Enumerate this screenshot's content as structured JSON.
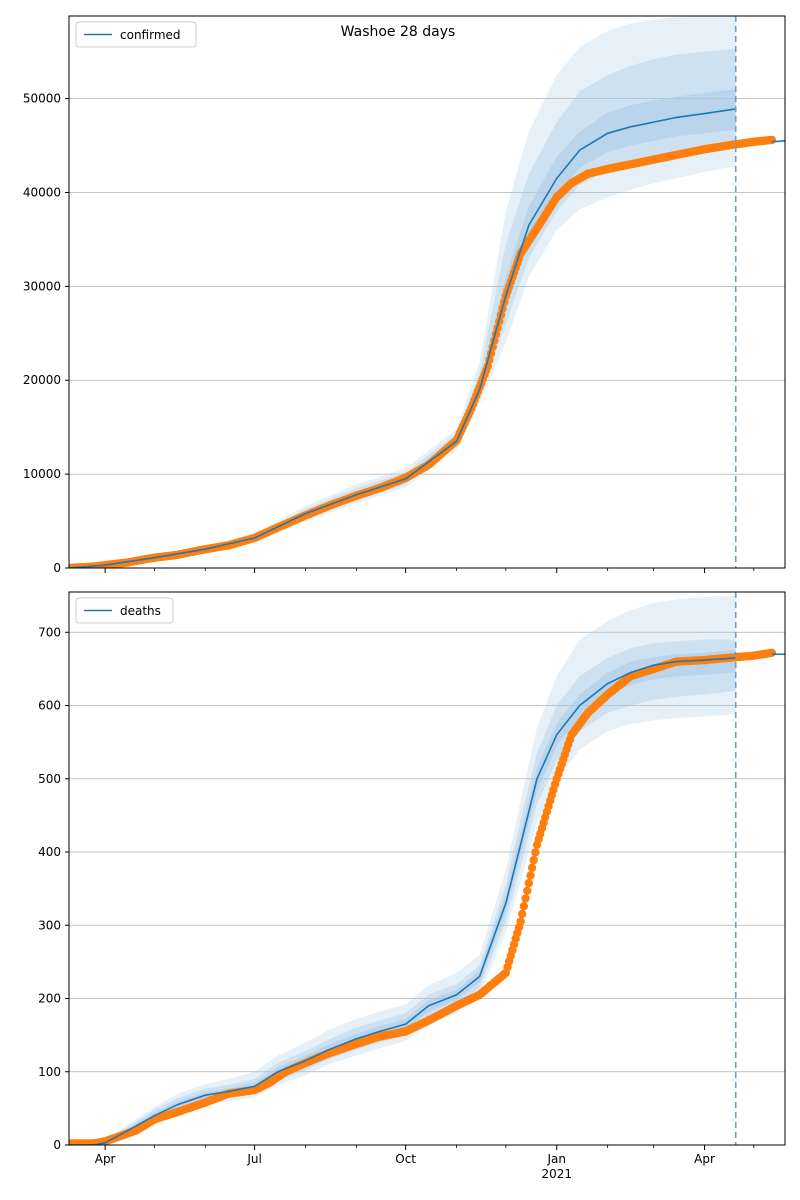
{
  "figure": {
    "title": "Washoe 28 days"
  },
  "colors": {
    "model_line": "#1f77b4",
    "observed_points": "#ff7f0e",
    "band": "#a6c8e6",
    "grid": "#b0b0b0",
    "forecast_start_line": "#6a9fca"
  },
  "x_axis": {
    "type": "date",
    "range": [
      "2020-03-10",
      "2021-05-20"
    ],
    "major_ticks": [
      {
        "date": "2020-04-01",
        "label": "Apr",
        "sublabel": ""
      },
      {
        "date": "2020-07-01",
        "label": "Jul",
        "sublabel": ""
      },
      {
        "date": "2020-10-01",
        "label": "Oct",
        "sublabel": ""
      },
      {
        "date": "2021-01-01",
        "label": "Jan",
        "sublabel": "2021"
      },
      {
        "date": "2021-04-01",
        "label": "Apr",
        "sublabel": ""
      }
    ],
    "minor_ticks": [
      "2020-05-01",
      "2020-06-01",
      "2020-08-01",
      "2020-09-01",
      "2020-11-01",
      "2020-12-01",
      "2021-02-01",
      "2021-03-01",
      "2021-05-01"
    ],
    "forecast_start": "2021-04-20"
  },
  "chart_data": [
    {
      "type": "line",
      "legend": {
        "label": "confirmed",
        "position": "upper-left"
      },
      "ylim": [
        0,
        58800
      ],
      "yticks": [
        0,
        10000,
        20000,
        30000,
        40000,
        50000
      ],
      "grid": "y",
      "model": {
        "x": [
          "2020-03-10",
          "2020-04-01",
          "2020-05-01",
          "2020-06-01",
          "2020-07-01",
          "2020-08-01",
          "2020-09-01",
          "2020-10-01",
          "2020-11-01",
          "2020-11-15",
          "2020-12-01",
          "2020-12-15",
          "2021-01-01",
          "2021-01-15",
          "2021-02-01",
          "2021-02-15",
          "2021-03-01",
          "2021-03-15",
          "2021-04-01",
          "2021-04-20"
        ],
        "y": [
          0,
          300,
          1100,
          2000,
          3200,
          5800,
          7800,
          9500,
          13500,
          19000,
          29000,
          36500,
          41500,
          44500,
          46300,
          47000,
          47500,
          48000,
          48400,
          48900
        ]
      },
      "bands": [
        {
          "level": "outer",
          "lower": [
            0,
            250,
            950,
            1750,
            2800,
            5000,
            6900,
            8600,
            12500,
            17500,
            24000,
            31000,
            36000,
            38200,
            39500,
            40300,
            41000,
            41500,
            42200,
            42800
          ],
          "upper": [
            0,
            350,
            1250,
            2350,
            3700,
            6600,
            8900,
            10600,
            14800,
            22000,
            38000,
            46500,
            52500,
            55500,
            57200,
            58000,
            58400,
            58700,
            58800,
            58800
          ]
        },
        {
          "level": "middle",
          "lower": [
            0,
            270,
            1000,
            1850,
            2950,
            5300,
            7200,
            8900,
            12900,
            18200,
            26000,
            33000,
            38000,
            40800,
            42300,
            43000,
            43500,
            44000,
            44400,
            44900
          ],
          "upper": [
            0,
            330,
            1200,
            2200,
            3500,
            6300,
            8500,
            10200,
            14300,
            20800,
            34500,
            42000,
            47500,
            50800,
            52500,
            53500,
            54200,
            54700,
            55000,
            55300
          ]
        },
        {
          "level": "inner",
          "lower": [
            0,
            285,
            1050,
            1920,
            3080,
            5550,
            7500,
            9200,
            13200,
            18700,
            27500,
            34800,
            39700,
            42600,
            44300,
            45000,
            45500,
            46000,
            46300,
            46700
          ],
          "upper": [
            0,
            315,
            1150,
            2080,
            3320,
            6050,
            8100,
            9800,
            13900,
            19600,
            31000,
            38500,
            43800,
            46500,
            48500,
            49300,
            49800,
            50200,
            50600,
            51000
          ]
        }
      ],
      "observed": {
        "x": [
          "2020-03-10",
          "2020-03-25",
          "2020-04-01",
          "2020-04-15",
          "2020-05-01",
          "2020-05-15",
          "2020-06-01",
          "2020-06-15",
          "2020-07-01",
          "2020-07-15",
          "2020-08-01",
          "2020-08-15",
          "2020-09-01",
          "2020-09-15",
          "2020-10-01",
          "2020-10-15",
          "2020-11-01",
          "2020-11-10",
          "2020-11-20",
          "2020-12-01",
          "2020-12-10",
          "2020-12-20",
          "2021-01-01",
          "2021-01-10",
          "2021-01-20",
          "2021-02-01",
          "2021-02-15",
          "2021-03-01",
          "2021-03-15",
          "2021-04-01",
          "2021-04-15",
          "2021-05-01",
          "2021-05-12"
        ],
        "y": [
          0,
          150,
          300,
          600,
          1100,
          1400,
          2000,
          2400,
          3200,
          4300,
          5600,
          6600,
          7700,
          8500,
          9600,
          11000,
          13600,
          17000,
          21500,
          29000,
          33500,
          36200,
          39500,
          41000,
          42000,
          42500,
          43000,
          43500,
          44000,
          44600,
          45000,
          45400,
          45600
        ]
      },
      "projection_tail": {
        "x": [
          "2021-05-12",
          "2021-05-20"
        ],
        "y": [
          45400,
          45500
        ]
      }
    },
    {
      "type": "line",
      "legend": {
        "label": "deaths",
        "position": "upper-left"
      },
      "ylim": [
        0,
        755
      ],
      "yticks": [
        0,
        100,
        200,
        300,
        400,
        500,
        600,
        700
      ],
      "grid": "y",
      "model": {
        "x": [
          "2020-03-10",
          "2020-03-25",
          "2020-04-01",
          "2020-04-15",
          "2020-05-01",
          "2020-05-15",
          "2020-06-01",
          "2020-06-15",
          "2020-07-01",
          "2020-07-15",
          "2020-08-01",
          "2020-08-15",
          "2020-09-01",
          "2020-09-15",
          "2020-10-01",
          "2020-10-15",
          "2020-11-01",
          "2020-11-15",
          "2020-12-01",
          "2020-12-10",
          "2020-12-20",
          "2021-01-01",
          "2021-01-15",
          "2021-02-01",
          "2021-02-15",
          "2021-03-01",
          "2021-03-15",
          "2021-04-01",
          "2021-04-20"
        ],
        "y": [
          0,
          0,
          3,
          20,
          40,
          55,
          68,
          73,
          80,
          100,
          115,
          130,
          145,
          155,
          165,
          190,
          205,
          230,
          330,
          410,
          500,
          560,
          600,
          630,
          645,
          655,
          660,
          662,
          665
        ]
      },
      "bands": [
        {
          "level": "outer",
          "lower": [
            0,
            0,
            1,
            12,
            28,
            42,
            55,
            60,
            65,
            82,
            95,
            110,
            122,
            132,
            142,
            165,
            180,
            205,
            290,
            360,
            440,
            500,
            540,
            565,
            575,
            580,
            583,
            585,
            588
          ],
          "upper": [
            0,
            0,
            5,
            28,
            52,
            70,
            83,
            90,
            100,
            122,
            140,
            157,
            172,
            182,
            192,
            218,
            235,
            260,
            375,
            470,
            570,
            640,
            690,
            715,
            730,
            740,
            745,
            748,
            750
          ]
        },
        {
          "level": "middle",
          "lower": [
            0,
            0,
            2,
            15,
            32,
            47,
            60,
            65,
            70,
            88,
            102,
            117,
            130,
            140,
            150,
            174,
            190,
            215,
            305,
            380,
            465,
            525,
            565,
            590,
            600,
            608,
            612,
            615,
            620
          ],
          "upper": [
            0,
            0,
            4,
            25,
            48,
            64,
            77,
            82,
            90,
            112,
            128,
            144,
            160,
            170,
            180,
            205,
            220,
            245,
            355,
            445,
            535,
            600,
            640,
            665,
            678,
            685,
            688,
            690,
            690
          ]
        },
        {
          "level": "inner",
          "lower": [
            0,
            0,
            2,
            17,
            36,
            51,
            64,
            69,
            75,
            94,
            108,
            124,
            138,
            148,
            158,
            182,
            198,
            222,
            318,
            396,
            482,
            545,
            585,
            615,
            628,
            636,
            640,
            642,
            645
          ],
          "upper": [
            0,
            0,
            4,
            23,
            44,
            59,
            72,
            77,
            85,
            106,
            122,
            137,
            152,
            162,
            172,
            198,
            212,
            238,
            342,
            425,
            515,
            575,
            615,
            645,
            660,
            666,
            670,
            672,
            676
          ]
        }
      ],
      "observed": {
        "x": [
          "2020-03-10",
          "2020-03-25",
          "2020-04-01",
          "2020-04-10",
          "2020-04-20",
          "2020-05-01",
          "2020-05-15",
          "2020-06-01",
          "2020-06-15",
          "2020-07-01",
          "2020-07-10",
          "2020-07-20",
          "2020-08-01",
          "2020-08-15",
          "2020-09-01",
          "2020-09-15",
          "2020-10-01",
          "2020-10-15",
          "2020-11-01",
          "2020-11-15",
          "2020-12-01",
          "2020-12-10",
          "2020-12-20",
          "2021-01-01",
          "2021-01-10",
          "2021-01-20",
          "2021-02-01",
          "2021-02-15",
          "2021-03-01",
          "2021-03-15",
          "2021-04-01",
          "2021-04-15",
          "2021-05-01",
          "2021-05-12"
        ],
        "y": [
          2,
          2,
          5,
          12,
          20,
          35,
          45,
          58,
          70,
          75,
          85,
          100,
          112,
          125,
          138,
          148,
          155,
          170,
          190,
          205,
          235,
          305,
          410,
          500,
          560,
          590,
          615,
          640,
          650,
          660,
          662,
          665,
          668,
          672
        ]
      },
      "projection_tail": {
        "x": [
          "2021-05-12",
          "2021-05-20"
        ],
        "y": [
          670,
          670
        ]
      }
    }
  ]
}
